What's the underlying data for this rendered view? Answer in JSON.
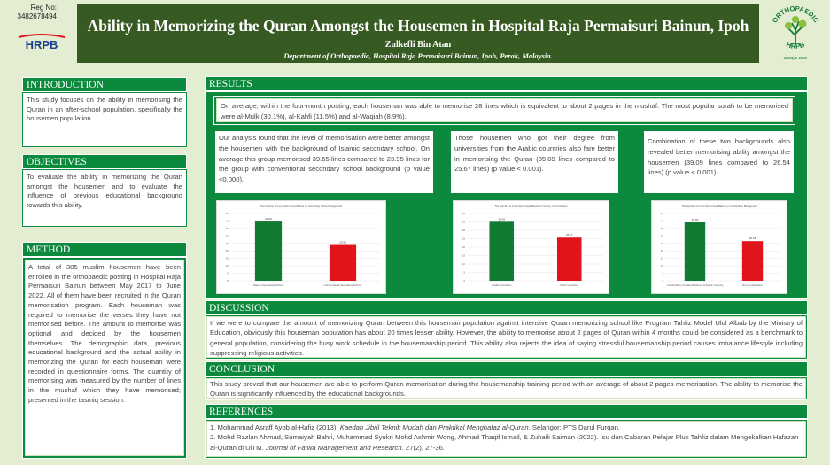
{
  "header": {
    "reg_label": "Reg No:",
    "reg_number": "3482678494",
    "title": "Ability in Memorizing the Quran Amongst the Housemen in Hospital Raja Permaisuri Bainun, Ipoh",
    "author": "Zulkefli Bin Atan",
    "department": "Department of Orthopaedic, Hospital Raja Permaisuri Bainun, Ipoh, Perak, Malaysia.",
    "left_logo_text": "HRPB",
    "right_logo_top": "ORTHOPAEDIC",
    "right_logo_bottom": "HRPB",
    "right_logo_tag": "always care"
  },
  "colors": {
    "green": "#0b8a3e",
    "dark_green": "#375a23",
    "background": "#e2edd2",
    "bar": "#e0151b",
    "bar_green": "#137a32"
  },
  "introduction": {
    "heading": "INTRODUCTION",
    "body": "This study focuses on the ability in memorising the Quran in an after-school population, specifically the housemen population."
  },
  "objectives": {
    "heading": "OBJECTIVES",
    "body": "To evaluate the ability in memorizing the Quran amongst the housemen and to evaluate the influence of previous educational background towards this ability."
  },
  "method": {
    "heading": "METHOD",
    "body": "A total of 385 muslim housemen have been enrolled in the orthopaedic posting in Hospital Raja Permaisuri Bainun between May 2017 to June 2022. All of them have been recruited in the Quran memorisation program. Each houseman was required to memorise the verses they have not memorised before. The amount to memorise was optional and decided by the housemen themselves. The demographic data, previous educational background and the actual ability in memorizing the Quran for each houseman were recorded in questionnaire forms. The quantity of memorising was measured by the number of lines in the mushaf which they have memorised; presented in the tasmiq session."
  },
  "results": {
    "heading": "RESULTS",
    "summary": "On average, within the four-month posting, each houseman was able to memorise 28 lines which is equivalent to about 2 pages in the mushaf. The most popular surah to be memorised were al-Mulk (30.1%), al-Kahfi (11.5%) and al-Waqiah (8.9%).",
    "card1": "Our analysis found that the level of memorisation were better amongst the housemen with the background of Islamic secondary school. On average this group memorised 39.65 lines compared to 23.95 lines for the group with conventional secondary school background (p value <0.000).",
    "card2": "Those housemen who got their degree from universities from the Arabic countries also fare better in memorising the Quran (35.09 lines compared to 25.67 lines) (p value < 0.001).",
    "card3": "Combination of these two backgrounds also revealed better memorising ability amongst the housemen (39.09 lines compared to 26.54 lines) (p value < 0.001)."
  },
  "chart_data": [
    {
      "type": "bar",
      "title": "The Number of Lines Memorised Based on Secondary School Background",
      "categories": [
        "Islamic Secondary School",
        "Conventional Secondary School"
      ],
      "values": [
        39.65,
        23.95
      ],
      "yticks": [
        "45",
        "40",
        "35",
        "30",
        "25",
        "20",
        "15",
        "10",
        "5",
        "0"
      ],
      "ylim": [
        0,
        45
      ]
    },
    {
      "type": "bar",
      "title": "The Number of Lines Memorised Based on Country of Universities",
      "categories": [
        "Arabic Countries",
        "Other Countries"
      ],
      "values": [
        35.09,
        25.67
      ],
      "yticks": [
        "40",
        "35",
        "30",
        "25",
        "20",
        "15",
        "10",
        "5",
        "0"
      ],
      "ylim": [
        0,
        40
      ]
    },
    {
      "type": "bar",
      "title": "The Number of Lines Memorised Based on Combination Background",
      "categories": [
        "Combination of Islamic School & Arabic Country",
        "Non-combination"
      ],
      "values": [
        39.09,
        26.54
      ],
      "yticks": [
        "45",
        "40",
        "35",
        "30",
        "25",
        "20",
        "15",
        "10",
        "5",
        "0"
      ],
      "ylim": [
        0,
        45
      ]
    }
  ],
  "discussion": {
    "heading": "DISCUSSION",
    "body": "If we were to compare the amount of memorizing Quran between this houseman population against intensive Quran memorizing school like Program Tahfiz Model Ulul Albab by the Ministry of Education, obviously this houseman population has about 20 times lesser ability. However, the ability to memorise about 2 pages of Quran within 4 months could be considered as a benchmark to general population, considering the busy work schedule in the housemanship period. This ability also rejects the idea of saying stressful housemanship period causes imbalance lifestyle including suppressing religious activities."
  },
  "conclusion": {
    "heading": "CONCLUSION",
    "body": "This study proved that our housemen are able to perform Quran memorisation during the housemanship training period with an average of about 2 pages memorisation. The ability to memorise the Quran is significantly influenced by the educational backgrounds."
  },
  "references": {
    "heading": "REFERENCES",
    "r1_a": "1. Mohammad Asraff Ayob al-Hafiz (2013). ",
    "r1_b": "Kaedah Jibril Teknik Mudah dan Praktikal Menghafaz al-Quran",
    "r1_c": ". Selangor: PTS Darul Furqan.",
    "r2_a": "2. Mohd Razlan Ahmad, Sumaiyah Bahri, Muhammad Syukri Mohd Ashmir Wong, Ahmad Thaqif Ismail, & Zuhaili Saiman (2022). Isu dan Cabaran Pelajar Plus Tahfiz dalam Mengekalkan Hafazan al-Quran di UiTM. ",
    "r2_b": "Journal of Fatwa Management and Research",
    "r2_c": ". 27(2), 27-36."
  }
}
